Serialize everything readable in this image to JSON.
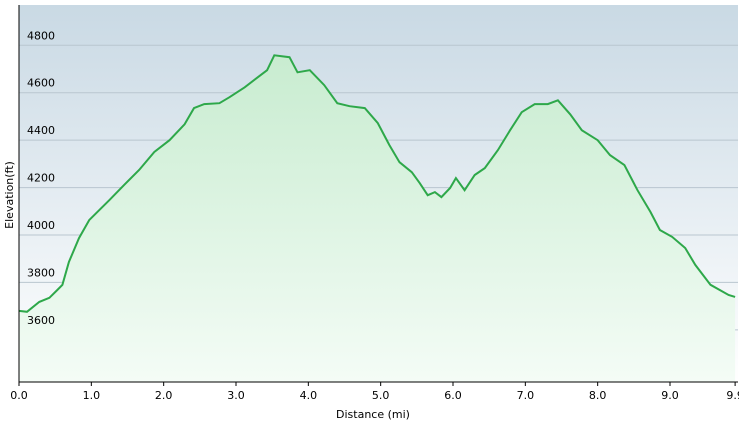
{
  "chart_data": {
    "type": "area",
    "x_label": "Distance  (mi)",
    "y_label": "Elevation(ft)",
    "x": [
      0,
      0.11,
      0.28,
      0.42,
      0.53,
      0.6,
      0.69,
      0.83,
      0.97,
      1.11,
      1.25,
      1.45,
      1.66,
      1.87,
      2.08,
      2.29,
      2.42,
      2.56,
      2.77,
      2.91,
      3.12,
      3.3,
      3.43,
      3.53,
      3.74,
      3.85,
      4.02,
      4.22,
      4.4,
      4.57,
      4.78,
      4.96,
      5.12,
      5.26,
      5.43,
      5.54,
      5.65,
      5.75,
      5.84,
      5.96,
      6.04,
      6.16,
      6.3,
      6.44,
      6.62,
      6.79,
      6.95,
      7.13,
      7.31,
      7.45,
      7.62,
      7.78,
      8.0,
      8.17,
      8.37,
      8.55,
      8.73,
      8.86,
      9.03,
      9.21,
      9.35,
      9.56,
      9.81,
      9.9
    ],
    "values": [
      3680,
      3676,
      3718,
      3735,
      3768,
      3790,
      3886,
      3987,
      4063,
      4105,
      4147,
      4210,
      4274,
      4350,
      4400,
      4467,
      4535,
      4552,
      4556,
      4581,
      4623,
      4665,
      4695,
      4758,
      4750,
      4686,
      4695,
      4632,
      4556,
      4543,
      4535,
      4472,
      4379,
      4307,
      4265,
      4219,
      4168,
      4181,
      4160,
      4198,
      4240,
      4189,
      4253,
      4282,
      4358,
      4442,
      4518,
      4552,
      4552,
      4568,
      4509,
      4442,
      4400,
      4337,
      4295,
      4189,
      4097,
      4021,
      3992,
      3945,
      3874,
      3790,
      3747,
      3739
    ],
    "color": "#2ea84a",
    "xlim": [
      0,
      9.94
    ],
    "ylim": [
      3380,
      4970
    ],
    "xticks": [
      {
        "value": 0,
        "label": "0.0"
      },
      {
        "value": 1,
        "label": "1.0"
      },
      {
        "value": 2,
        "label": "2.0"
      },
      {
        "value": 3,
        "label": "3.0"
      },
      {
        "value": 4,
        "label": "4.0"
      },
      {
        "value": 5,
        "label": "5.0"
      },
      {
        "value": 6,
        "label": "6.0"
      },
      {
        "value": 7,
        "label": "7.0"
      },
      {
        "value": 8,
        "label": "8.0"
      },
      {
        "value": 9,
        "label": "9.0"
      },
      {
        "value": 9.9,
        "label": "9.9"
      }
    ],
    "yticks": [
      3600,
      3800,
      4000,
      4200,
      4400,
      4600,
      4800
    ],
    "grid": true
  }
}
